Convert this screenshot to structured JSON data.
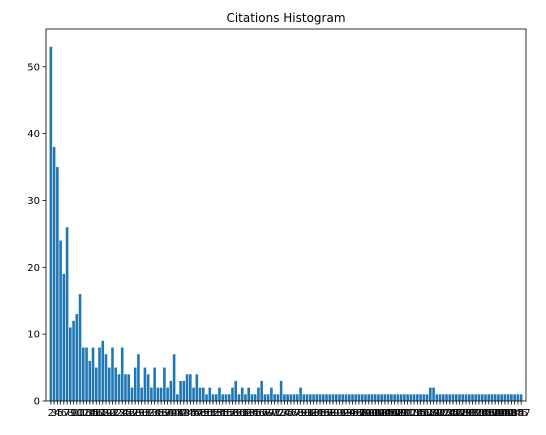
{
  "chart_data": {
    "type": "bar",
    "title": "Citations Histogram",
    "xlabel": "",
    "ylabel": "",
    "ylim": [
      0,
      55.65
    ],
    "yticks": [
      0,
      10,
      20,
      30,
      40,
      50
    ],
    "bar_color": "#1f77b4",
    "grid": false,
    "categories": [
      "2",
      "3",
      "4",
      "5",
      "6",
      "7",
      "8",
      "9",
      "10",
      "11",
      "12",
      "13",
      "14",
      "15",
      "16",
      "17",
      "18",
      "19",
      "20",
      "21",
      "22",
      "23",
      "24",
      "25",
      "26",
      "27",
      "28",
      "29",
      "30",
      "31",
      "32",
      "33",
      "34",
      "35",
      "36",
      "37",
      "38",
      "39",
      "40",
      "41",
      "42",
      "43",
      "44",
      "45",
      "46",
      "47",
      "48",
      "49",
      "50",
      "51",
      "52",
      "53",
      "54",
      "55",
      "56",
      "57",
      "58",
      "59",
      "60",
      "61",
      "62",
      "63",
      "64",
      "65",
      "66",
      "67",
      "68",
      "69",
      "70",
      "71",
      "72",
      "73",
      "74",
      "75",
      "76",
      "77",
      "78",
      "79",
      "80",
      "81",
      "82",
      "83",
      "84",
      "85",
      "86",
      "87",
      "88",
      "89",
      "90",
      "91",
      "92",
      "93",
      "94",
      "95",
      "96",
      "97",
      "98",
      "99",
      "100",
      "101",
      "102",
      "103",
      "104",
      "105",
      "106",
      "107",
      "108",
      "109",
      "110",
      "111",
      "112",
      "113",
      "114",
      "115",
      "116",
      "117",
      "118",
      "119",
      "120",
      "121",
      "122",
      "123",
      "124",
      "125",
      "126",
      "127",
      "128",
      "129",
      "130",
      "131",
      "132",
      "133",
      "134",
      "135",
      "136",
      "137",
      "138",
      "139",
      "140",
      "141",
      "142",
      "143",
      "144",
      "145",
      "146",
      "147"
    ],
    "values": [
      53,
      38,
      35,
      24,
      19,
      26,
      11,
      12,
      13,
      16,
      8,
      8,
      6,
      8,
      5,
      8,
      9,
      7,
      5,
      8,
      5,
      4,
      8,
      4,
      4,
      2,
      5,
      7,
      2,
      5,
      4,
      2,
      5,
      2,
      2,
      5,
      2,
      3,
      7,
      1,
      3,
      3,
      4,
      4,
      2,
      4,
      2,
      2,
      1,
      2,
      1,
      1,
      2,
      1,
      1,
      1,
      2,
      3,
      1,
      2,
      1,
      2,
      1,
      1,
      2,
      3,
      1,
      1,
      2,
      1,
      1,
      3,
      1,
      1,
      1,
      1,
      1,
      2,
      1,
      1,
      1,
      1,
      1,
      1,
      1,
      1,
      1,
      1,
      1,
      1,
      1,
      1,
      1,
      1,
      1,
      1,
      1,
      1,
      1,
      1,
      1,
      1,
      1,
      1,
      1,
      1,
      1,
      1,
      1,
      1,
      1,
      1,
      1,
      1,
      1,
      1,
      1,
      2,
      2,
      1,
      1,
      1,
      1,
      1,
      1,
      1,
      1,
      1,
      1,
      1,
      1,
      1,
      1,
      1,
      1,
      1,
      1,
      1,
      1,
      1,
      1,
      1,
      1,
      1,
      1,
      1
    ]
  }
}
